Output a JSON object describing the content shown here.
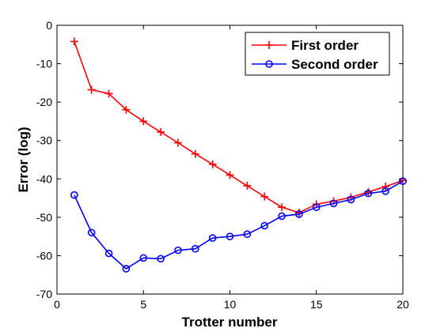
{
  "chart_data": {
    "type": "line",
    "xlabel": "Trotter number",
    "ylabel": "Error (log)",
    "xlim": [
      0,
      20
    ],
    "ylim": [
      -70,
      0
    ],
    "xticks": [
      0,
      5,
      10,
      15,
      20
    ],
    "yticks": [
      0,
      -10,
      -20,
      -30,
      -40,
      -50,
      -60,
      -70
    ],
    "grid": false,
    "legend_position": "top-right",
    "x": [
      1,
      2,
      3,
      4,
      5,
      6,
      7,
      8,
      9,
      10,
      11,
      12,
      13,
      14,
      15,
      16,
      17,
      18,
      19,
      20
    ],
    "series": [
      {
        "name": "First order",
        "color": "#ff0000",
        "marker": "plus",
        "values": [
          -4.2,
          -16.8,
          -17.8,
          -22,
          -25,
          -27.8,
          -30.6,
          -33.5,
          -36.2,
          -39,
          -41.8,
          -44.6,
          -47.4,
          -48.8,
          -46.6,
          -45.8,
          -44.8,
          -43.4,
          -42,
          -40.4
        ]
      },
      {
        "name": "Second order",
        "color": "#0000ff",
        "marker": "circle",
        "values": [
          -44.2,
          -54,
          -59.4,
          -63.4,
          -60.6,
          -60.8,
          -58.6,
          -58.2,
          -55.4,
          -55,
          -54.4,
          -52.2,
          -49.7,
          -49.2,
          -47.4,
          -46.4,
          -45.4,
          -43.8,
          -43.2,
          -40.6
        ]
      }
    ]
  }
}
